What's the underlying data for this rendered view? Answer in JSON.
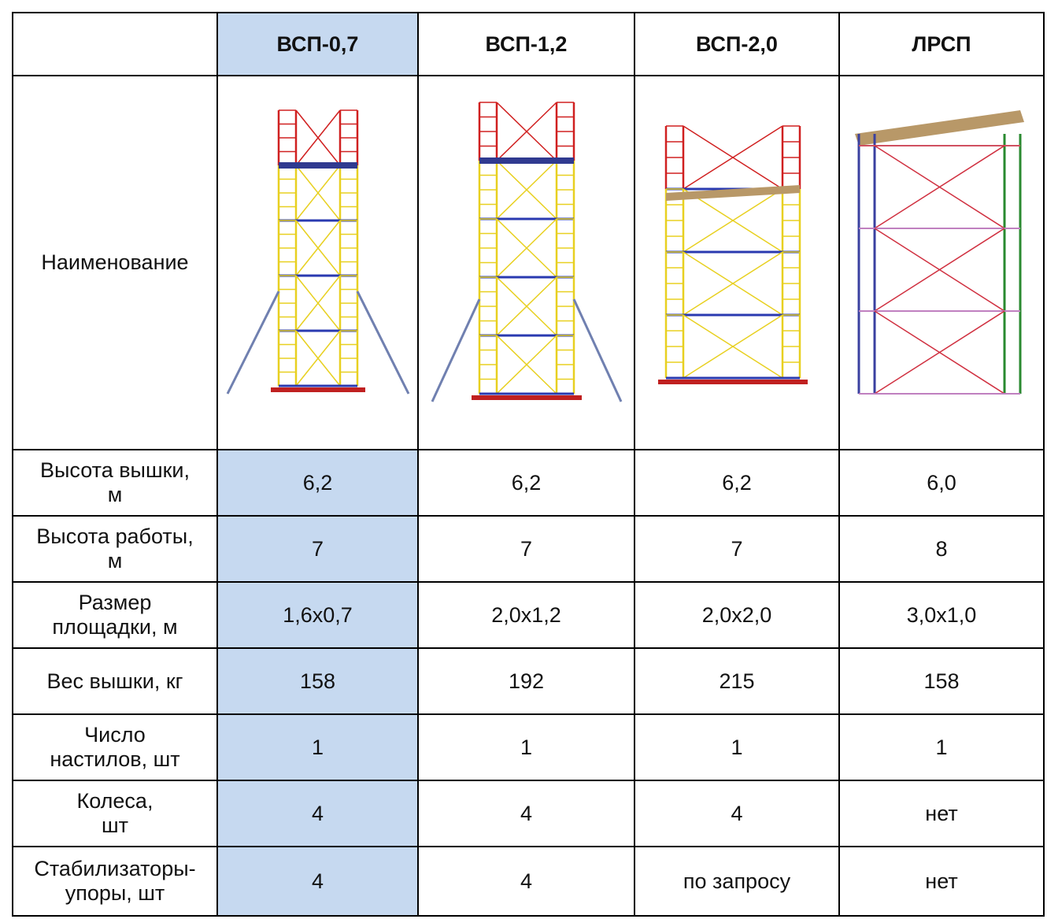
{
  "table": {
    "corner_label": "Наименование",
    "columns": [
      "ВСП-0,7",
      "ВСП-1,2",
      "ВСП-2,0",
      "ЛРСП"
    ],
    "rows": [
      {
        "label": "Высота вышки,\nм",
        "cells": [
          "6,2",
          "6,2",
          "6,2",
          "6,0"
        ]
      },
      {
        "label": "Высота работы,\nм",
        "cells": [
          "7",
          "7",
          "7",
          "8"
        ]
      },
      {
        "label": "Размер\nплощадки, м",
        "cells": [
          "1,6x0,7",
          "2,0x1,2",
          "2,0x2,0",
          "3,0x1,0"
        ]
      },
      {
        "label": "Вес вышки, кг",
        "cells": [
          "158",
          "192",
          "215",
          "158"
        ]
      },
      {
        "label": "Число\nнастилов, шт",
        "cells": [
          "1",
          "1",
          "1",
          "1"
        ]
      },
      {
        "label": "Колеса,\nшт",
        "cells": [
          "4",
          "4",
          "4",
          "нет"
        ]
      },
      {
        "label": "Стабилизаторы-\nупоры, шт",
        "cells": [
          "4",
          "4",
          "по запросу",
          "нет"
        ]
      }
    ]
  }
}
